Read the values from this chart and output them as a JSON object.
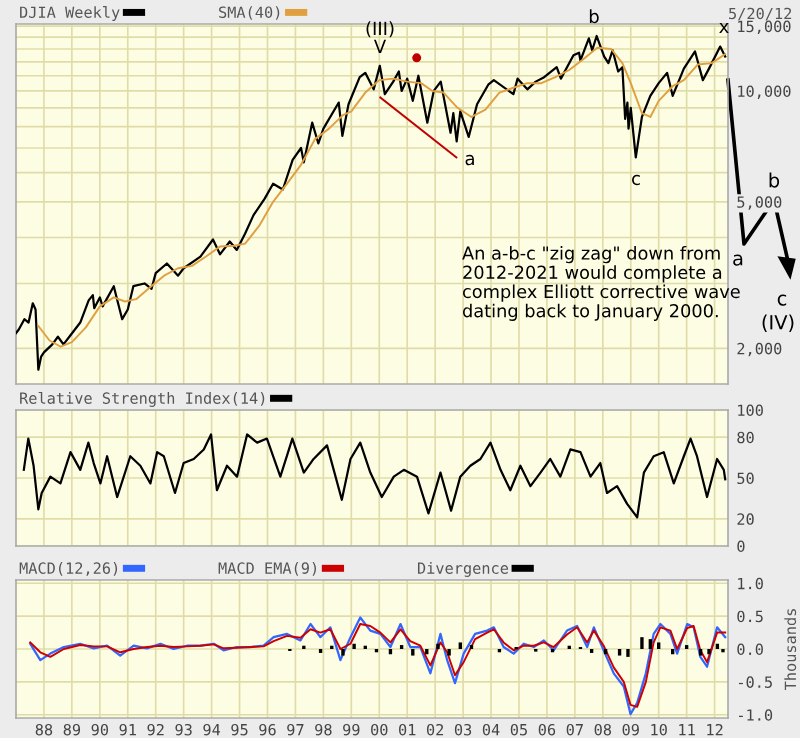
{
  "chart_data": [
    {
      "type": "line",
      "subtitle": "5/20/12",
      "log": "y",
      "legend": "top left",
      "grid": true,
      "tick_labels": "y",
      "xlim": [
        1987.0,
        2012.48
      ],
      "xticks": [
        1988,
        1989,
        1990,
        1991,
        1992,
        1993,
        1994,
        1995,
        1996,
        1997,
        1998,
        1999,
        2000,
        2001,
        2002,
        2003,
        2004,
        2005,
        2006,
        2007,
        2008,
        2009,
        2010,
        2011,
        2012
      ],
      "ylim": [
        1600,
        15200
      ],
      "yticks": [
        {
          "value": 2000,
          "label": "2,000"
        },
        {
          "value": 3000,
          "label": null
        },
        {
          "value": 4000,
          "label": null
        },
        {
          "value": 5000,
          "label": "5,000"
        },
        {
          "value": 6000,
          "label": null
        },
        {
          "value": 7000,
          "label": null
        },
        {
          "value": 8000,
          "label": null
        },
        {
          "value": 9000,
          "label": null
        },
        {
          "value": 10000,
          "label": "10,000"
        },
        {
          "value": 11000,
          "label": null
        },
        {
          "value": 12000,
          "label": null
        },
        {
          "value": 13000,
          "label": null
        },
        {
          "value": 14000,
          "label": null
        },
        {
          "value": 15000,
          "label": "15,000"
        }
      ],
      "series": [
        {
          "name": "DJIA Weekly",
          "color": "#000000",
          "x": [
            1987.0,
            1987.1,
            1987.3,
            1987.45,
            1987.6,
            1987.7,
            1987.8,
            1987.9,
            1988.0,
            1988.3,
            1988.5,
            1988.7,
            1988.95,
            1989.3,
            1989.6,
            1989.75,
            1989.8,
            1990.0,
            1990.1,
            1990.5,
            1990.6,
            1990.8,
            1991.0,
            1991.2,
            1991.6,
            1991.85,
            1992.0,
            1992.4,
            1992.8,
            1993.0,
            1993.6,
            1994.05,
            1994.3,
            1994.65,
            1994.9,
            1995.2,
            1995.5,
            1995.9,
            1996.2,
            1996.55,
            1996.9,
            1997.2,
            1997.3,
            1997.6,
            1997.82,
            1998.0,
            1998.55,
            1998.68,
            1998.9,
            1999.3,
            1999.5,
            1999.8,
            2000.02,
            2000.2,
            2000.5,
            2000.7,
            2000.8,
            2001.0,
            2001.2,
            2001.4,
            2001.72,
            2001.95,
            2002.2,
            2002.55,
            2002.65,
            2002.77,
            2002.9,
            2003.2,
            2003.5,
            2003.9,
            2004.1,
            2004.8,
            2004.95,
            2005.3,
            2005.6,
            2005.9,
            2006.35,
            2006.5,
            2006.95,
            2007.15,
            2007.2,
            2007.5,
            2007.62,
            2007.78,
            2008.05,
            2008.2,
            2008.35,
            2008.55,
            2008.7,
            2008.8,
            2008.88,
            2008.92,
            2009.0,
            2009.18,
            2009.4,
            2009.7,
            2010.0,
            2010.3,
            2010.5,
            2010.9,
            2011.3,
            2011.58,
            2011.8,
            2012.2,
            2012.38
          ],
          "values": [
            2200,
            2250,
            2400,
            2350,
            2650,
            2550,
            1750,
            1900,
            1950,
            2050,
            2150,
            2050,
            2170,
            2350,
            2700,
            2790,
            2570,
            2750,
            2600,
            2950,
            2750,
            2400,
            2550,
            2950,
            3000,
            2900,
            3200,
            3400,
            3150,
            3300,
            3550,
            3950,
            3600,
            3900,
            3700,
            4100,
            4600,
            5100,
            5600,
            5400,
            6500,
            7000,
            6400,
            8200,
            7200,
            7900,
            9300,
            7550,
            9200,
            10900,
            11200,
            10100,
            11700,
            9800,
            10600,
            11300,
            10000,
            10800,
            9400,
            11000,
            8200,
            10000,
            10600,
            7700,
            8700,
            7300,
            8800,
            7500,
            9200,
            10400,
            10700,
            9800,
            10800,
            10100,
            10600,
            10900,
            11600,
            10800,
            12500,
            12700,
            12100,
            13900,
            12900,
            14100,
            12400,
            11900,
            12900,
            11300,
            11600,
            8400,
            9300,
            7900,
            9000,
            6600,
            8500,
            9700,
            10500,
            11200,
            9700,
            11500,
            12800,
            10700,
            11500,
            13200,
            12400
          ]
        },
        {
          "name": "SMA(40)",
          "color": "#e0a040",
          "x": [
            1987.8,
            1988.2,
            1988.6,
            1989.0,
            1989.5,
            1990.0,
            1990.5,
            1990.9,
            1991.3,
            1991.8,
            1992.3,
            1992.8,
            1993.3,
            1993.8,
            1994.3,
            1994.8,
            1995.2,
            1995.7,
            1996.2,
            1996.7,
            1997.2,
            1997.7,
            1998.2,
            1998.7,
            1999.0,
            1999.5,
            2000.0,
            2000.5,
            2001.0,
            2001.5,
            2001.9,
            2002.3,
            2002.8,
            2003.3,
            2003.8,
            2004.3,
            2004.8,
            2005.3,
            2005.8,
            2006.3,
            2006.8,
            2007.3,
            2007.8,
            2008.3,
            2008.7,
            2009.0,
            2009.4,
            2009.7,
            2010.0,
            2010.5,
            2010.9,
            2011.4,
            2011.9,
            2012.38
          ],
          "values": [
            2300,
            2100,
            2020,
            2080,
            2280,
            2600,
            2750,
            2680,
            2720,
            2930,
            3150,
            3300,
            3350,
            3550,
            3780,
            3800,
            3850,
            4300,
            5000,
            5600,
            6300,
            7400,
            7900,
            8600,
            8800,
            9900,
            10700,
            10800,
            10600,
            10500,
            10000,
            9900,
            9000,
            8500,
            8900,
            9900,
            10200,
            10500,
            10500,
            10900,
            11400,
            12200,
            13100,
            13000,
            11900,
            10500,
            8700,
            8500,
            9400,
            10300,
            10700,
            11800,
            11900,
            12600
          ]
        },
        {
          "type": "line",
          "color": "#c00000",
          "x": [
            2000.04,
            2002.76
          ],
          "values": [
            9600,
            6600
          ]
        },
        {
          "type": "scatter",
          "color": "#c00000",
          "x": [
            2001.34
          ],
          "values": [
            12300
          ]
        }
      ],
      "annotations": [
        "(III)",
        "V",
        "a",
        "b",
        "c",
        "x",
        "An a-b-c \"zig zag\" down from\n2012-2021 would complete a\ncomplex Elliott corrective wave\ndating back to January 2000.",
        "a",
        "b",
        "c",
        "(IV)"
      ]
    },
    {
      "type": "line",
      "legend": "top left",
      "grid": true,
      "tick_labels": "y",
      "xlim": [
        1987.0,
        2012.48
      ],
      "xticks": [
        1988,
        1989,
        1990,
        1991,
        1992,
        1993,
        1994,
        1995,
        1996,
        1997,
        1998,
        1999,
        2000,
        2001,
        2002,
        2003,
        2004,
        2005,
        2006,
        2007,
        2008,
        2009,
        2010,
        2011,
        2012
      ],
      "ylim": [
        0,
        100
      ],
      "yticks": [
        0,
        20,
        50,
        80,
        100
      ],
      "series": [
        {
          "name": "Relative Strength Index(14)",
          "color": "#000000",
          "x": [
            1987.28,
            1987.44,
            1987.63,
            1987.8,
            1987.92,
            1988.23,
            1988.59,
            1988.95,
            1989.3,
            1989.59,
            1989.78,
            1990.02,
            1990.26,
            1990.62,
            1991.09,
            1991.45,
            1991.81,
            1992.05,
            1992.29,
            1992.69,
            1993.0,
            1993.36,
            1993.72,
            1993.98,
            1994.19,
            1994.55,
            1994.91,
            1995.27,
            1995.63,
            1995.98,
            1996.46,
            1996.89,
            1997.3,
            1997.65,
            1998.13,
            1998.37,
            1998.66,
            1998.97,
            1999.32,
            1999.68,
            2000.09,
            2000.52,
            2000.88,
            2001.35,
            2001.76,
            2002.19,
            2002.57,
            2002.9,
            2003.26,
            2003.62,
            2003.98,
            2004.34,
            2004.69,
            2005.05,
            2005.41,
            2005.77,
            2006.12,
            2006.48,
            2006.84,
            2007.2,
            2007.56,
            2007.91,
            2008.15,
            2008.51,
            2008.87,
            2009.23,
            2009.47,
            2009.82,
            2010.18,
            2010.54,
            2010.9,
            2011.14,
            2011.37,
            2011.73,
            2012.09,
            2012.33,
            2012.38
          ],
          "values": [
            56,
            79,
            59,
            27,
            39,
            51,
            46,
            69,
            56,
            76,
            61,
            46,
            66,
            36,
            66,
            59,
            46,
            69,
            66,
            39,
            61,
            64,
            71,
            82,
            41,
            59,
            51,
            82,
            76,
            79,
            51,
            79,
            54,
            64,
            74,
            56,
            34,
            64,
            76,
            54,
            36,
            51,
            56,
            51,
            24,
            54,
            26,
            51,
            59,
            64,
            76,
            56,
            41,
            59,
            44,
            54,
            64,
            51,
            71,
            69,
            51,
            61,
            39,
            44,
            31,
            21,
            54,
            66,
            69,
            46,
            66,
            79,
            66,
            36,
            64,
            56,
            49
          ]
        }
      ]
    },
    {
      "type": "line",
      "legend": "top left",
      "grid": true,
      "ylabel": "Thousands",
      "xlim": [
        1987.0,
        2012.48
      ],
      "xticks": [
        {
          "value": 1988,
          "label": "88"
        },
        {
          "value": 1989,
          "label": "89"
        },
        {
          "value": 1990,
          "label": "90"
        },
        {
          "value": 1991,
          "label": "91"
        },
        {
          "value": 1992,
          "label": "92"
        },
        {
          "value": 1993,
          "label": "93"
        },
        {
          "value": 1994,
          "label": "94"
        },
        {
          "value": 1995,
          "label": "95"
        },
        {
          "value": 1996,
          "label": "96"
        },
        {
          "value": 1997,
          "label": "97"
        },
        {
          "value": 1998,
          "label": "98"
        },
        {
          "value": 1999,
          "label": "99"
        },
        {
          "value": 2000,
          "label": "00"
        },
        {
          "value": 2001,
          "label": "01"
        },
        {
          "value": 2002,
          "label": "02"
        },
        {
          "value": 2003,
          "label": "03"
        },
        {
          "value": 2004,
          "label": "04"
        },
        {
          "value": 2005,
          "label": "05"
        },
        {
          "value": 2006,
          "label": "06"
        },
        {
          "value": 2007,
          "label": "07"
        },
        {
          "value": 2008,
          "label": "08"
        },
        {
          "value": 2009,
          "label": "09"
        },
        {
          "value": 2010,
          "label": "10"
        },
        {
          "value": 2011,
          "label": "11"
        },
        {
          "value": 2012,
          "label": "12"
        }
      ],
      "ylim": [
        -1.05,
        1.05
      ],
      "yticks": [
        {
          "value": -1.0,
          "label": "-1.0"
        },
        {
          "value": -0.5,
          "label": "-0.5"
        },
        {
          "value": 0.0,
          "label": "0.0"
        },
        {
          "value": 0.5,
          "label": "0.5"
        },
        {
          "value": 1.0,
          "label": "1.0"
        }
      ],
      "series": [
        {
          "name": "MACD(12,26)",
          "color": "#3366ff",
          "x": [
            1987.51,
            1987.87,
            1988.23,
            1988.71,
            1989.3,
            1989.78,
            1990.26,
            1990.73,
            1991.21,
            1991.69,
            1992.17,
            1992.64,
            1993.12,
            1993.6,
            1994.08,
            1994.43,
            1994.91,
            1995.39,
            1995.86,
            1996.22,
            1996.7,
            1997.18,
            1997.54,
            1997.89,
            1998.25,
            1998.61,
            1998.97,
            1999.32,
            1999.68,
            2000.04,
            2000.4,
            2000.76,
            2001.11,
            2001.47,
            2001.83,
            2002.19,
            2002.43,
            2002.71,
            2003.02,
            2003.43,
            2003.86,
            2004.1,
            2004.45,
            2004.81,
            2005.17,
            2005.53,
            2005.89,
            2006.24,
            2006.72,
            2007.08,
            2007.44,
            2007.68,
            2008.03,
            2008.39,
            2008.75,
            2008.99,
            2009.23,
            2009.54,
            2009.82,
            2010.06,
            2010.42,
            2010.66,
            2011.02,
            2011.25,
            2011.49,
            2011.73,
            2012.09,
            2012.38
          ],
          "values": [
            0.08,
            -0.17,
            -0.07,
            0.03,
            0.08,
            0.01,
            0.05,
            -0.1,
            0.05,
            0.01,
            0.08,
            0.0,
            0.05,
            0.05,
            0.08,
            -0.02,
            0.03,
            0.03,
            0.05,
            0.18,
            0.23,
            0.13,
            0.38,
            0.18,
            0.33,
            -0.17,
            0.18,
            0.48,
            0.28,
            0.23,
            0.03,
            0.38,
            0.03,
            0.03,
            -0.37,
            0.23,
            -0.17,
            -0.52,
            -0.07,
            0.23,
            0.28,
            0.33,
            0.03,
            -0.07,
            0.08,
            0.03,
            0.13,
            -0.02,
            0.28,
            0.35,
            0.03,
            0.33,
            -0.02,
            -0.37,
            -0.57,
            -0.99,
            -0.82,
            -0.37,
            0.23,
            0.38,
            0.23,
            -0.07,
            0.38,
            0.33,
            -0.12,
            -0.27,
            0.33,
            0.18
          ]
        },
        {
          "name": "MACD EMA(9)",
          "color": "#cc0000",
          "x": [
            1987.51,
            1987.87,
            1988.23,
            1988.71,
            1989.3,
            1989.78,
            1990.26,
            1990.73,
            1991.21,
            1991.69,
            1992.17,
            1992.64,
            1993.12,
            1993.6,
            1994.08,
            1994.43,
            1994.91,
            1995.39,
            1995.86,
            1996.22,
            1996.7,
            1997.18,
            1997.54,
            1997.89,
            1998.25,
            1998.61,
            1998.97,
            1999.32,
            1999.68,
            2000.04,
            2000.4,
            2000.76,
            2001.11,
            2001.47,
            2001.83,
            2002.19,
            2002.43,
            2002.71,
            2003.02,
            2003.43,
            2003.86,
            2004.1,
            2004.45,
            2004.81,
            2005.17,
            2005.53,
            2005.89,
            2006.24,
            2006.72,
            2007.08,
            2007.44,
            2007.68,
            2008.03,
            2008.39,
            2008.75,
            2008.99,
            2009.23,
            2009.54,
            2009.82,
            2010.06,
            2010.42,
            2010.66,
            2011.02,
            2011.25,
            2011.49,
            2011.73,
            2012.09,
            2012.38
          ],
          "values": [
            0.1,
            -0.05,
            -0.12,
            0.0,
            0.06,
            0.04,
            0.04,
            -0.05,
            0.0,
            0.03,
            0.05,
            0.03,
            0.04,
            0.05,
            0.07,
            0.01,
            0.02,
            0.03,
            0.04,
            0.12,
            0.2,
            0.17,
            0.3,
            0.25,
            0.3,
            0.0,
            0.08,
            0.38,
            0.35,
            0.25,
            0.1,
            0.3,
            0.12,
            0.05,
            -0.25,
            0.1,
            -0.05,
            -0.4,
            -0.2,
            0.15,
            0.25,
            0.3,
            0.1,
            -0.02,
            0.05,
            0.05,
            0.1,
            0.03,
            0.22,
            0.33,
            0.1,
            0.28,
            0.05,
            -0.28,
            -0.5,
            -0.85,
            -0.88,
            -0.5,
            0.1,
            0.33,
            0.28,
            0.0,
            0.32,
            0.35,
            -0.02,
            -0.2,
            0.25,
            0.25
          ]
        },
        {
          "name": "Divergence",
          "type": "bar",
          "color": "#000000",
          "x": [
            1996.8,
            1997.3,
            1997.9,
            1998.3,
            1998.7,
            1999.1,
            1999.5,
            1999.9,
            2000.4,
            2000.8,
            2001.2,
            2001.7,
            2002.1,
            2002.5,
            2002.9,
            2003.3,
            2004.3,
            2004.9,
            2005.6,
            2006.2,
            2006.8,
            2007.2,
            2007.6,
            2008.1,
            2008.6,
            2008.9,
            2009.4,
            2009.7,
            2010.0,
            2010.5,
            2011.0,
            2011.5,
            2011.8,
            2012.1,
            2012.3
          ],
          "values": [
            -0.03,
            0.05,
            -0.06,
            0.05,
            -0.1,
            0.08,
            0.05,
            -0.05,
            -0.08,
            0.06,
            -0.1,
            -0.08,
            0.08,
            -0.1,
            0.1,
            0.06,
            -0.05,
            0.03,
            -0.04,
            -0.05,
            0.05,
            0.03,
            -0.06,
            -0.08,
            -0.1,
            -0.12,
            0.18,
            0.15,
            0.1,
            -0.08,
            0.06,
            -0.1,
            -0.08,
            0.08,
            -0.05
          ]
        }
      ]
    }
  ]
}
